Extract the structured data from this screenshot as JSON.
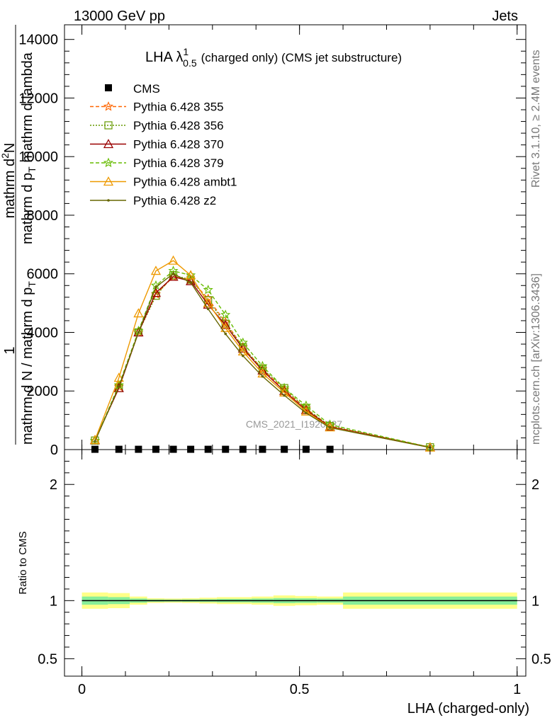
{
  "header": {
    "left": "13000 GeV pp",
    "right": "Jets"
  },
  "side": {
    "rivet": "Rivet 3.1.10, ≥ 2.4M events",
    "mcplots": "mcplots.cern.ch [arXiv:1306.3436]"
  },
  "chart_data": [
    {
      "type": "line",
      "title": "LHA λ",
      "title_sup": "1",
      "title_sub": "0.5",
      "title_suffix": "(charged only) (CMS jet substructure)",
      "ylabel_num": "1",
      "ylabel_den": "mathrm d N / mathrm d p",
      "ylabel_den_sub": "T",
      "ylabel_den_tail": "mathrm d p",
      "ylabel_den_tail_sub": "T",
      "ylabel_den_end": "mathrm d lambda",
      "ylabel_numer2": "mathrm d",
      "ylabel_numer2_sup": "2",
      "ylabel_numer2_end": "N",
      "ylim": [
        0,
        14500
      ],
      "xlim": [
        -0.04,
        1.02
      ],
      "yticks": [
        0,
        2000,
        4000,
        6000,
        8000,
        10000,
        12000,
        14000
      ],
      "ytick_labels": [
        "0",
        "2000",
        "4000",
        "6000",
        "8000",
        "10000",
        "12000",
        "14000"
      ],
      "watermark": "CMS_2021_I1920187",
      "legend_position": "top-left",
      "data": {
        "name": "CMS",
        "x": [
          0.03,
          0.085,
          0.13,
          0.17,
          0.21,
          0.25,
          0.29,
          0.33,
          0.37,
          0.415,
          0.465,
          0.515,
          0.57
        ],
        "y": [
          10,
          10,
          10,
          10,
          10,
          10,
          10,
          10,
          10,
          10,
          10,
          10,
          10
        ]
      },
      "series": [
        {
          "name": "Pythia 6.428 355",
          "color": "#ff6600",
          "marker": "star",
          "dash": "5,3",
          "x": [
            0.03,
            0.085,
            0.13,
            0.17,
            0.21,
            0.25,
            0.29,
            0.33,
            0.37,
            0.415,
            0.465,
            0.515,
            0.57,
            0.8
          ],
          "y": [
            300,
            2150,
            4000,
            5300,
            5900,
            5800,
            5150,
            4350,
            3500,
            2750,
            2050,
            1400,
            800,
            80
          ]
        },
        {
          "name": "Pythia 6.428 356",
          "color": "#669900",
          "marker": "square",
          "dash": "2,2",
          "x": [
            0.03,
            0.085,
            0.13,
            0.17,
            0.21,
            0.25,
            0.29,
            0.33,
            0.37,
            0.415,
            0.465,
            0.515,
            0.57,
            0.8
          ],
          "y": [
            310,
            2100,
            4000,
            5250,
            5950,
            5800,
            5100,
            4300,
            3500,
            2750,
            2100,
            1400,
            800,
            80
          ]
        },
        {
          "name": "Pythia 6.428 370",
          "color": "#990000",
          "marker": "triangle",
          "dash": "",
          "x": [
            0.03,
            0.085,
            0.13,
            0.17,
            0.21,
            0.25,
            0.29,
            0.33,
            0.37,
            0.415,
            0.465,
            0.515,
            0.57,
            0.8
          ],
          "y": [
            320,
            2100,
            4000,
            5350,
            5900,
            5750,
            4950,
            4250,
            3450,
            2700,
            2000,
            1350,
            780,
            75
          ]
        },
        {
          "name": "Pythia 6.428 379",
          "color": "#66bb00",
          "marker": "star",
          "dash": "5,3",
          "x": [
            0.03,
            0.085,
            0.13,
            0.17,
            0.21,
            0.25,
            0.29,
            0.33,
            0.37,
            0.415,
            0.465,
            0.515,
            0.57,
            0.8
          ],
          "y": [
            300,
            2200,
            4050,
            5600,
            6100,
            5950,
            5450,
            4600,
            3650,
            2850,
            2100,
            1500,
            850,
            80
          ]
        },
        {
          "name": "Pythia 6.428 ambt1",
          "color": "#ee9900",
          "marker": "triangle",
          "dash": "",
          "x": [
            0.03,
            0.085,
            0.13,
            0.17,
            0.21,
            0.25,
            0.29,
            0.33,
            0.37,
            0.415,
            0.465,
            0.515,
            0.57,
            0.8
          ],
          "y": [
            330,
            2450,
            4650,
            6100,
            6450,
            5950,
            5000,
            4150,
            3350,
            2600,
            1950,
            1300,
            760,
            70
          ]
        },
        {
          "name": "Pythia 6.428 z2",
          "color": "#666600",
          "marker": "dot",
          "dash": "",
          "x": [
            0.03,
            0.085,
            0.13,
            0.17,
            0.21,
            0.25,
            0.29,
            0.33,
            0.37,
            0.415,
            0.465,
            0.515,
            0.57,
            0.8
          ],
          "y": [
            280,
            2150,
            4000,
            5550,
            6000,
            5700,
            4800,
            3950,
            3200,
            2500,
            1850,
            1250,
            750,
            70
          ]
        }
      ]
    },
    {
      "type": "area",
      "ylabel": "Ratio to CMS",
      "xlabel": "LHA (charged-only)",
      "xlim": [
        -0.04,
        1.02
      ],
      "ylim": [
        0.35,
        2.3
      ],
      "yticks": [
        0.5,
        1,
        2
      ],
      "ytick_labels": [
        "0.5",
        "1",
        "2"
      ],
      "xticks": [
        0,
        0.5,
        1
      ],
      "xtick_labels": [
        "0",
        "0.5",
        "1"
      ],
      "reference_line": 1,
      "bands": {
        "edges": [
          0,
          0.06,
          0.11,
          0.15,
          0.19,
          0.23,
          0.27,
          0.31,
          0.35,
          0.39,
          0.44,
          0.49,
          0.54,
          0.6,
          1.0
        ],
        "yellow_half": [
          0.07,
          0.065,
          0.035,
          0.02,
          0.018,
          0.02,
          0.025,
          0.03,
          0.03,
          0.035,
          0.045,
          0.04,
          0.035,
          0.07
        ],
        "green_half": [
          0.035,
          0.03,
          0.018,
          0.01,
          0.009,
          0.01,
          0.012,
          0.015,
          0.015,
          0.018,
          0.022,
          0.02,
          0.018,
          0.035
        ]
      }
    }
  ]
}
